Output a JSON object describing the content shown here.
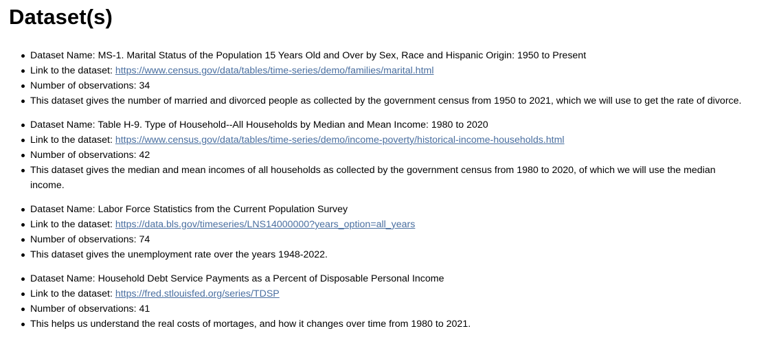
{
  "heading": "Dataset(s)",
  "labels": {
    "name": "Dataset Name: ",
    "link": "Link to the dataset: ",
    "obs": "Number of observations: "
  },
  "datasets": [
    {
      "name": "MS-1. Marital Status of the Population 15 Years Old and Over by Sex, Race and Hispanic Origin: 1950 to Present",
      "link": "https://www.census.gov/data/tables/time-series/demo/families/marital.html",
      "observations": "34",
      "description": "This dataset gives the number of married and divorced people as collected by the government census from 1950 to 2021, which we will use to get the rate of divorce."
    },
    {
      "name": "Table H-9. Type of Household--All Households by Median and Mean Income: 1980 to 2020",
      "link": "https://www.census.gov/data/tables/time-series/demo/income-poverty/historical-income-households.html",
      "observations": "42",
      "description": "This dataset gives the median and mean incomes of all households as collected by the government census from 1980 to 2020, of which we will use the median income."
    },
    {
      "name": "Labor Force Statistics from the Current Population Survey",
      "link": "https://data.bls.gov/timeseries/LNS14000000?years_option=all_years",
      "observations": "74",
      "description": "This dataset gives the unemployment rate over the years 1948-2022."
    },
    {
      "name": "Household Debt Service Payments as a Percent of Disposable Personal Income",
      "link": "https://fred.stlouisfed.org/series/TDSP",
      "observations": "41",
      "description": "This helps us understand the real costs of mortages, and how it changes over time from 1980 to 2021."
    }
  ]
}
